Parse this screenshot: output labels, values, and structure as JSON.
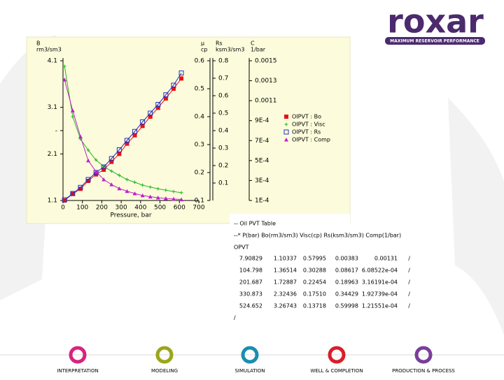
{
  "header": {
    "logo": "roxar",
    "tagline": "MAXIMUM RESERVOIR PERFORMANCE"
  },
  "chart_data": {
    "type": "line",
    "x_label": "Pressure, bar",
    "x": [
      8,
      50,
      90,
      130,
      170,
      210,
      250,
      290,
      330,
      370,
      410,
      450,
      490,
      530,
      570,
      610
    ],
    "xlim": [
      0,
      700
    ],
    "xticks": [
      0,
      100,
      200,
      300,
      400,
      500,
      600,
      700
    ],
    "axes": [
      {
        "title": "B",
        "unit": "rm3/sm3",
        "lim": [
          1.1,
          4.1
        ],
        "ticks": [
          1.1,
          2.1,
          {
            "value": 2.6,
            "label": "-"
          },
          3.1,
          4.1
        ]
      },
      {
        "title": "μ",
        "unit": "cp",
        "lim": [
          0.1,
          0.6
        ],
        "ticks": [
          0.1,
          0.2,
          0.3,
          0.4,
          0.5,
          0.6
        ]
      },
      {
        "title": "Rs",
        "unit": "ksm3/sm3",
        "lim": [
          0,
          0.8
        ],
        "ticks": [
          0.1,
          0.2,
          0.3,
          0.4,
          0.5,
          0.6,
          0.7,
          0.8
        ]
      },
      {
        "title": "C",
        "unit": "1/bar",
        "lim": [
          0.0001,
          0.0015
        ],
        "ticks": [
          {
            "value": 0.0001,
            "label": "1E-4"
          },
          {
            "value": 0.0003,
            "label": "3E-4"
          },
          {
            "value": 0.0005,
            "label": "5E-4"
          },
          {
            "value": 0.0007,
            "label": "7E-4"
          },
          {
            "value": 0.0009,
            "label": "9E-4"
          },
          0.0011,
          0.0013,
          0.0015
        ]
      }
    ],
    "series": [
      {
        "name": "OIPVT : Bo",
        "color": "#e8101a",
        "marker": "square",
        "axis": 0,
        "values": [
          1.1,
          1.24,
          1.35,
          1.52,
          1.66,
          1.76,
          1.93,
          2.1,
          2.32,
          2.5,
          2.7,
          2.9,
          3.09,
          3.29,
          3.5,
          3.72
        ]
      },
      {
        "name": "OIPVT : Visc",
        "color": "#22b822",
        "marker": "plus",
        "axis": 1,
        "values": [
          0.58,
          0.4,
          0.32,
          0.28,
          0.245,
          0.222,
          0.205,
          0.19,
          0.175,
          0.165,
          0.155,
          0.148,
          0.142,
          0.137,
          0.132,
          0.128
        ]
      },
      {
        "name": "OIPVT : Rs",
        "color": "#2030c0",
        "marker": "open-square",
        "axis": 2,
        "values": [
          0.004,
          0.04,
          0.075,
          0.12,
          0.16,
          0.192,
          0.24,
          0.29,
          0.344,
          0.395,
          0.45,
          0.5,
          0.55,
          0.605,
          0.66,
          0.73
        ]
      },
      {
        "name": "OIPVT : Comp",
        "color": "#c020c8",
        "marker": "triangle",
        "axis": 3,
        "values": [
          0.00131,
          0.001,
          0.00074,
          0.0005,
          0.00039,
          0.00031,
          0.00026,
          0.00022,
          0.000193,
          0.00017,
          0.00015,
          0.000138,
          0.000128,
          0.00012,
          0.000115,
          0.00011
        ]
      }
    ]
  },
  "table": {
    "lines": [
      "-- Oil PVT Table",
      "--* P(bar)  Bo(rm3/sm3)  Visc(cp)  Rs(ksm3/sm3)  Comp(1/bar)",
      "OPVT"
    ],
    "rows": [
      [
        "7.90829",
        "1.10337",
        "0.57995",
        "0.00383",
        "0.00131",
        "/"
      ],
      [
        "104.798",
        "1.36514",
        "0.30288",
        "0.08617",
        "6.08522e-04",
        "/"
      ],
      [
        "201.687",
        "1.72887",
        "0.22454",
        "0.18963",
        "3.16191e-04",
        "/"
      ],
      [
        "330.873",
        "2.32436",
        "0.17510",
        "0.34429",
        "1.92739e-04",
        "/"
      ],
      [
        "524.652",
        "3.26743",
        "0.13718",
        "0.59998",
        "1.21551e-04",
        "/"
      ]
    ],
    "end": "/"
  },
  "footer": {
    "items": [
      "INTERPRETATION",
      "MODELING",
      "SIMULATION",
      "WELL & COMPLETION",
      "PRODUCTION & PROCESS"
    ]
  }
}
